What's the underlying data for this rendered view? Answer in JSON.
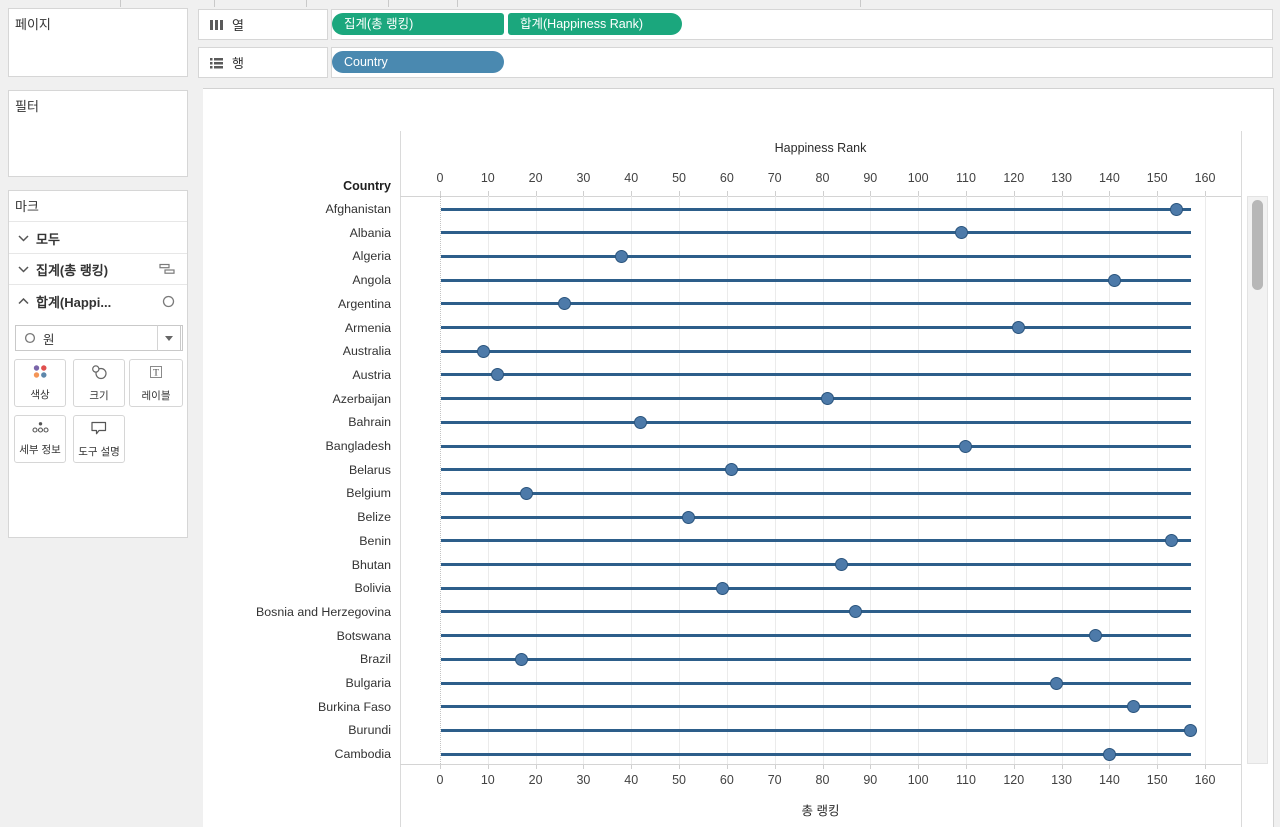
{
  "sidebar": {
    "pages_card_title": "페이지",
    "filters_card_title": "필터",
    "marks_card": {
      "title": "마크",
      "rows": [
        {
          "label": "모두"
        },
        {
          "label": "집계(총 랭킹)"
        },
        {
          "label": "합계(Happi..."
        }
      ],
      "mark_type": {
        "value": "원"
      },
      "buttons": [
        {
          "label": "색상"
        },
        {
          "label": "크기"
        },
        {
          "label": "레이블"
        },
        {
          "label": "세부 정보"
        },
        {
          "label": "도구 설명"
        }
      ]
    }
  },
  "shelves": {
    "columns_shelf": {
      "label": "열",
      "pills": [
        {
          "text": "집계(총 랭킹)"
        },
        {
          "text": "합계(Happiness Rank)"
        }
      ]
    },
    "rows_shelf": {
      "label": "행",
      "pills": [
        {
          "text": "Country"
        }
      ]
    }
  },
  "chart_data": {
    "type": "scatter",
    "top_axis_title": "Happiness Rank",
    "bottom_axis_title": "총 랭킹",
    "row_field": "Country",
    "categories": [
      "Afghanistan",
      "Albania",
      "Algeria",
      "Angola",
      "Argentina",
      "Armenia",
      "Australia",
      "Austria",
      "Azerbaijan",
      "Bahrain",
      "Bangladesh",
      "Belarus",
      "Belgium",
      "Belize",
      "Benin",
      "Bhutan",
      "Bolivia",
      "Bosnia and Herzegovina",
      "Botswana",
      "Brazil",
      "Bulgaria",
      "Burkina Faso",
      "Burundi",
      "Cambodia"
    ],
    "series": [
      {
        "name": "집계(총 랭킹)",
        "mark": "gantt-line",
        "values": [
          157,
          157,
          157,
          157,
          157,
          157,
          157,
          157,
          157,
          157,
          157,
          157,
          157,
          157,
          157,
          157,
          157,
          157,
          157,
          157,
          157,
          157,
          157,
          157
        ]
      },
      {
        "name": "합계(Happiness Rank)",
        "mark": "circle",
        "values": [
          154,
          109,
          38,
          141,
          26,
          121,
          9,
          12,
          81,
          42,
          110,
          61,
          18,
          52,
          153,
          84,
          59,
          87,
          137,
          17,
          129,
          145,
          157,
          140
        ]
      }
    ],
    "x_ticks": [
      0,
      10,
      20,
      30,
      40,
      50,
      60,
      70,
      80,
      90,
      100,
      110,
      120,
      130,
      140,
      150,
      160
    ],
    "xlim": [
      0,
      167
    ],
    "grid": true,
    "legend": "none"
  },
  "colors": {
    "measure_pill": "#1ba77d",
    "dimension_pill": "#4a89b0",
    "gantt_line": "#2d5e8a",
    "dot_fill": "#4d7aa9",
    "dot_stroke": "#2a547d"
  }
}
